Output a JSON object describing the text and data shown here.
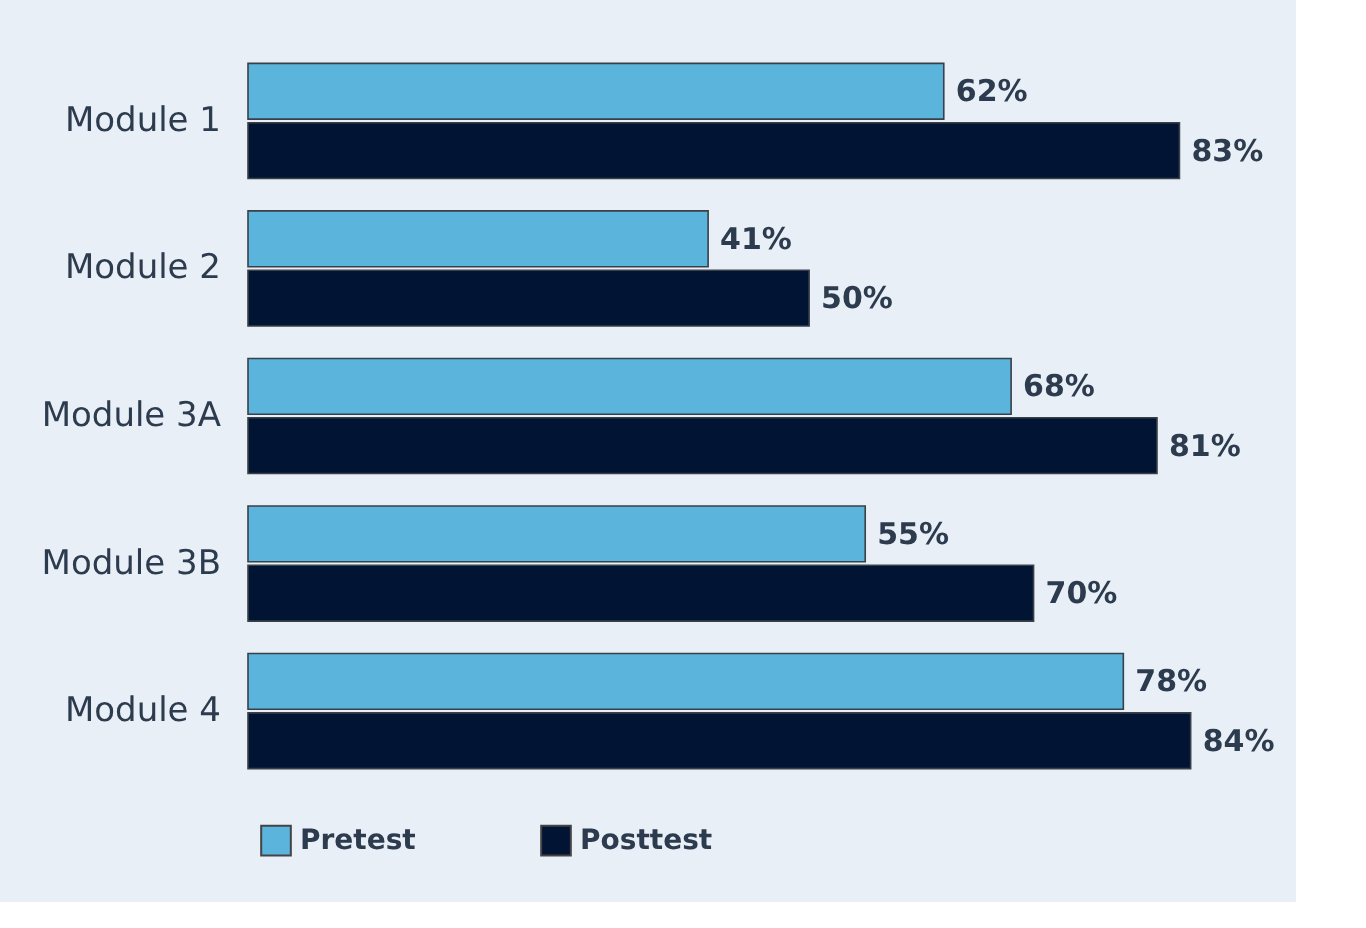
{
  "chart_data": {
    "type": "bar",
    "orientation": "horizontal",
    "categories": [
      "Module 1",
      "Module 2",
      "Module 3A",
      "Module 3B",
      "Module 4"
    ],
    "tick_labels": "y",
    "legend": "bottom",
    "series": [
      {
        "name": "Pretest",
        "color": "#5ab4db",
        "values": [
          62,
          41,
          68,
          55,
          78
        ],
        "value_labels": [
          "62%",
          "41%",
          "68%",
          "55%",
          "78%"
        ]
      },
      {
        "name": "Posttest",
        "color": "#021433",
        "values": [
          83,
          50,
          81,
          70,
          84
        ],
        "value_labels": [
          "83%",
          "50%",
          "81%",
          "70%",
          "84%"
        ]
      }
    ]
  }
}
